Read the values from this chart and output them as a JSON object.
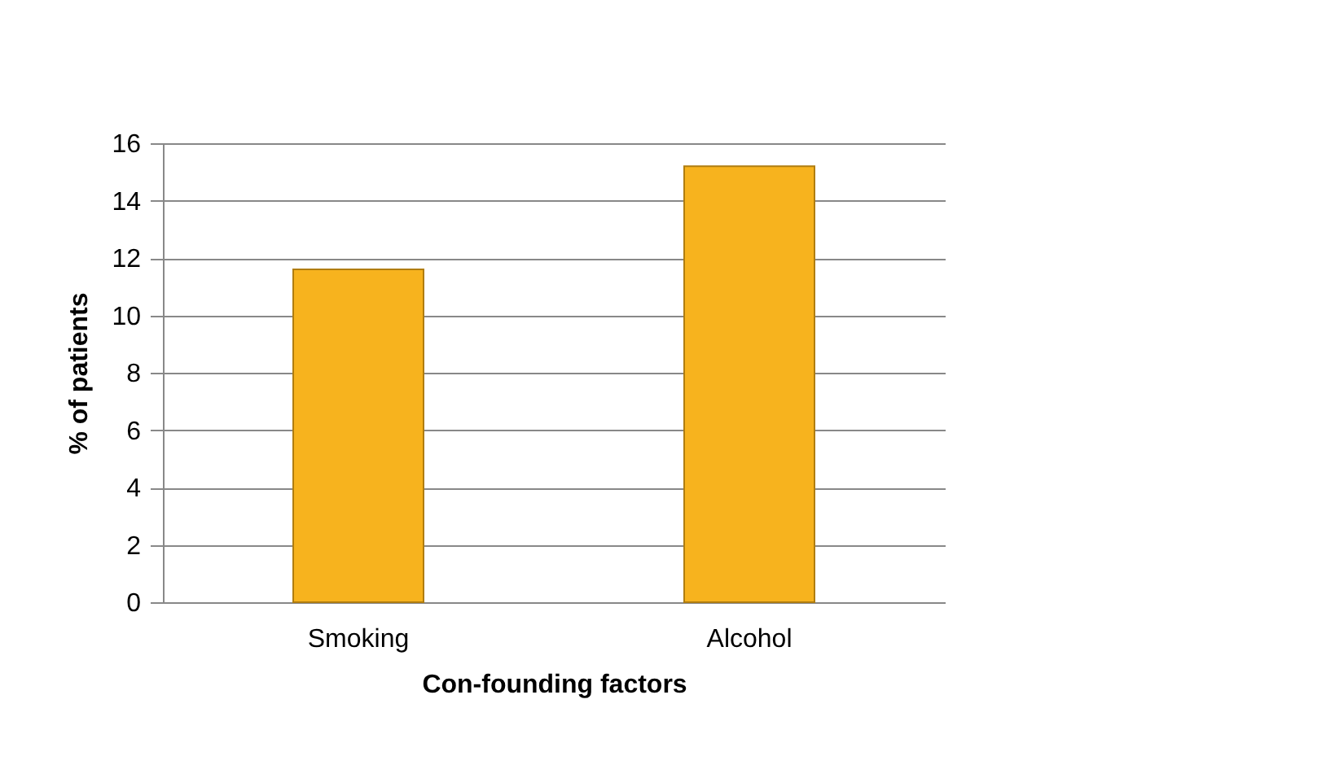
{
  "chart_data": {
    "type": "bar",
    "xlabel": "Con-founding factors",
    "ylabel": "% of patients",
    "categories": [
      "Smoking",
      "Alcohol"
    ],
    "values": [
      11.6,
      15.2
    ],
    "color": "#f7b31e",
    "ylim": [
      0,
      16
    ],
    "yticks": [
      0,
      2,
      4,
      6,
      8,
      10,
      12,
      14,
      16
    ],
    "grid": "y"
  }
}
